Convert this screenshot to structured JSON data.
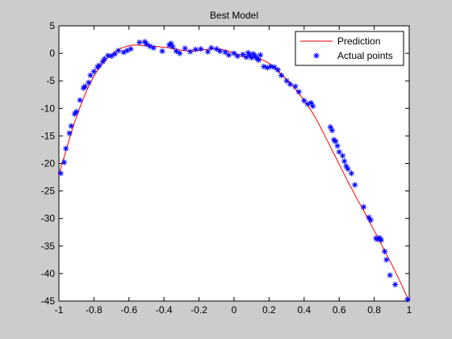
{
  "chart_data": {
    "type": "line",
    "title": "Best Model",
    "xlabel": "",
    "ylabel": "",
    "xlim": [
      -1,
      1
    ],
    "ylim": [
      -45,
      5
    ],
    "x_ticks": [
      -1,
      -0.8,
      -0.6,
      -0.4,
      -0.2,
      0,
      0.2,
      0.4,
      0.6,
      0.8,
      1
    ],
    "x_tick_labels": [
      "-1",
      "-0.8",
      "-0.6",
      "-0.4",
      "-0.2",
      "0",
      "0.2",
      "0.4",
      "0.6",
      "0.8",
      "1"
    ],
    "y_ticks": [
      5,
      0,
      -5,
      -10,
      -15,
      -20,
      -25,
      -30,
      -35,
      -40,
      -45
    ],
    "y_tick_labels": [
      "5",
      "0",
      "-5",
      "-10",
      "-15",
      "-20",
      "-25",
      "-30",
      "-35",
      "-40",
      "-45"
    ],
    "grid": false,
    "legend_position": "top-right",
    "colors": {
      "prediction": "#ff0000",
      "actual": "#0000ff",
      "plot_bg": "#ffffff",
      "figure_bg": "#cccccc"
    },
    "series": [
      {
        "name": "Prediction",
        "style": "line",
        "x": [
          -1,
          -0.97,
          -0.94,
          -0.91,
          -0.88,
          -0.85,
          -0.82,
          -0.79,
          -0.76,
          -0.73,
          -0.7,
          -0.67,
          -0.64,
          -0.61,
          -0.58,
          -0.55,
          -0.52,
          -0.49,
          -0.46,
          -0.43,
          -0.4,
          -0.37,
          -0.34,
          -0.31,
          -0.28,
          -0.25,
          -0.22,
          -0.19,
          -0.16,
          -0.13,
          -0.1,
          -0.07,
          -0.04,
          -0.01,
          0.02,
          0.05,
          0.08,
          0.11,
          0.14,
          0.17,
          0.2,
          0.23,
          0.26,
          0.29,
          0.32,
          0.35,
          0.38,
          0.41,
          0.44,
          0.47,
          0.5,
          0.53,
          0.56,
          0.59,
          0.62,
          0.65,
          0.68,
          0.71,
          0.74,
          0.77,
          0.8,
          0.83,
          0.86,
          0.89,
          0.92,
          0.95,
          0.98,
          1
        ],
        "y": [
          -22,
          -18.8,
          -15.5,
          -12.5,
          -9.8,
          -7.4,
          -5.3,
          -3.6,
          -2.2,
          -1.1,
          -0.2,
          0.5,
          1.0,
          1.3,
          1.5,
          1.5,
          1.4,
          1.3,
          1.3,
          1.2,
          1.1,
          1.0,
          0.8,
          0.6,
          0.5,
          0.4,
          0.5,
          0.6,
          0.7,
          0.8,
          0.8,
          0.7,
          0.5,
          0.2,
          -0.3,
          -0.6,
          -0.7,
          -0.7,
          -0.9,
          -1.3,
          -1.8,
          -2.6,
          -3.5,
          -4.4,
          -5.4,
          -6.5,
          -7.7,
          -9.0,
          -10.4,
          -12.0,
          -13.8,
          -15.7,
          -17.6,
          -19.5,
          -21.4,
          -23.3,
          -25.1,
          -26.9,
          -28.6,
          -30.4,
          -32.2,
          -34.0,
          -35.9,
          -37.7,
          -39.6,
          -41.6,
          -43.7,
          -45
        ]
      },
      {
        "name": "Actual points",
        "style": "marker",
        "marker": "*",
        "x": [
          -0.99,
          -0.97,
          -0.96,
          -0.94,
          -0.93,
          -0.91,
          -0.9,
          -0.88,
          -0.86,
          -0.85,
          -0.83,
          -0.82,
          -0.8,
          -0.78,
          -0.77,
          -0.75,
          -0.74,
          -0.72,
          -0.7,
          -0.68,
          -0.66,
          -0.63,
          -0.61,
          -0.59,
          -0.54,
          -0.51,
          -0.5,
          -0.48,
          -0.46,
          -0.41,
          -0.37,
          -0.36,
          -0.35,
          -0.33,
          -0.31,
          -0.28,
          -0.25,
          -0.22,
          -0.19,
          -0.15,
          -0.13,
          -0.1,
          -0.08,
          -0.05,
          -0.03,
          0.0,
          0.02,
          0.05,
          0.07,
          0.08,
          0.09,
          0.1,
          0.11,
          0.12,
          0.13,
          0.14,
          0.15,
          0.17,
          0.19,
          0.21,
          0.23,
          0.25,
          0.27,
          0.3,
          0.32,
          0.35,
          0.37,
          0.4,
          0.42,
          0.44,
          0.45,
          0.55,
          0.56,
          0.57,
          0.58,
          0.59,
          0.6,
          0.62,
          0.63,
          0.64,
          0.65,
          0.67,
          0.69,
          0.74,
          0.77,
          0.78,
          0.81,
          0.82,
          0.83,
          0.84,
          0.86,
          0.87,
          0.89,
          0.92,
          0.99
        ],
        "y": [
          -21.8,
          -19.8,
          -17.3,
          -14.5,
          -13.2,
          -11.0,
          -10.6,
          -8.5,
          -6.3,
          -6.0,
          -5.3,
          -4.0,
          -3.3,
          -2.5,
          -2.2,
          -1.5,
          -1.0,
          -0.4,
          -0.5,
          -0.1,
          0.5,
          0.2,
          0.5,
          0.8,
          2.0,
          2.1,
          1.7,
          1.3,
          1.0,
          0.4,
          1.5,
          1.8,
          1.2,
          0.4,
          0.0,
          0.9,
          0.3,
          0.7,
          0.8,
          0.3,
          1.0,
          0.8,
          0.4,
          0.2,
          -0.3,
          0.0,
          -0.5,
          -0.2,
          -0.7,
          0.1,
          -0.3,
          -0.8,
          -0.1,
          -0.5,
          -0.9,
          -1.2,
          -0.3,
          -2.4,
          -2.6,
          -2.4,
          -2.5,
          -3.0,
          -4.0,
          -5.0,
          -5.6,
          -6.0,
          -7.0,
          -8.6,
          -9.2,
          -9.0,
          -9.6,
          -13.4,
          -14.0,
          -15.7,
          -16.0,
          -16.8,
          -17.9,
          -18.6,
          -19.6,
          -20.5,
          -21.0,
          -21.8,
          -23.9,
          -27.9,
          -29.8,
          -30.3,
          -33.6,
          -33.8,
          -33.5,
          -33.9,
          -36.0,
          -37.5,
          -40.3,
          -42.0,
          -44.7
        ]
      }
    ]
  }
}
